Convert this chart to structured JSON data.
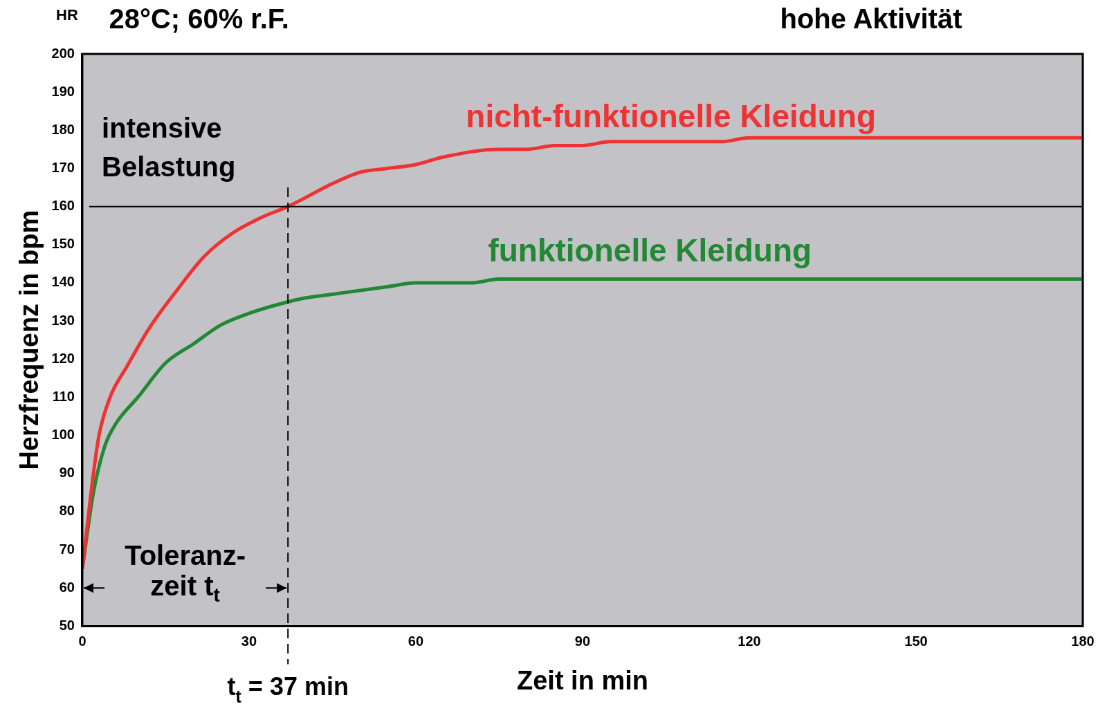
{
  "chart_data": {
    "type": "line",
    "title": "28°C; 60% r.F.",
    "subtitle": "hohe Aktivität",
    "xlabel": "Zeit in min",
    "ylabel": "Herzfrequenz in bpm",
    "series": [
      {
        "name": "nicht-funktionelle Kleidung",
        "color": "#ee3333",
        "x": [
          0,
          2,
          3,
          5,
          8,
          12,
          17,
          22,
          27,
          32,
          37,
          45,
          50,
          55,
          60,
          65,
          75,
          80,
          85,
          90,
          95,
          115,
          120,
          180
        ],
        "values": [
          65,
          90,
          100,
          110,
          118,
          128,
          138,
          147,
          153,
          157,
          160,
          166,
          169,
          170,
          171,
          173,
          175,
          175,
          176,
          176,
          177,
          177,
          178,
          178
        ]
      },
      {
        "name": "funktionelle Kleidung",
        "color": "#228833",
        "x": [
          0,
          2,
          4,
          6,
          10,
          15,
          20,
          25,
          30,
          37,
          40,
          45,
          50,
          55,
          60,
          70,
          75,
          180
        ],
        "values": [
          65,
          85,
          97,
          103,
          110,
          119,
          124,
          129,
          132,
          135,
          136,
          137,
          138,
          139,
          140,
          140,
          141,
          141
        ]
      }
    ],
    "xlim": [
      0,
      180
    ],
    "xticks": [
      0,
      30,
      60,
      90,
      120,
      150,
      180
    ],
    "ylim": [
      50,
      200
    ],
    "yticks": [
      50,
      60,
      70,
      80,
      90,
      100,
      110,
      120,
      130,
      140,
      150,
      160,
      170,
      180,
      190,
      200
    ],
    "grid": false,
    "legend": false,
    "marker": "none",
    "line_style": "solid",
    "ref_lines": [
      {
        "axis": "y",
        "value": 160,
        "color": "#000000",
        "line_style": "solid"
      },
      {
        "axis": "x",
        "value": 37,
        "label": "t$_{t}$ = 37 min",
        "color": "#000000",
        "line_style": "dashed"
      }
    ],
    "annotations": [
      "HR",
      "intensive Belastung",
      {
        "text": "Toleranz- zeit t$_{t}$",
        "x": 37,
        "y": 60
      }
    ]
  }
}
